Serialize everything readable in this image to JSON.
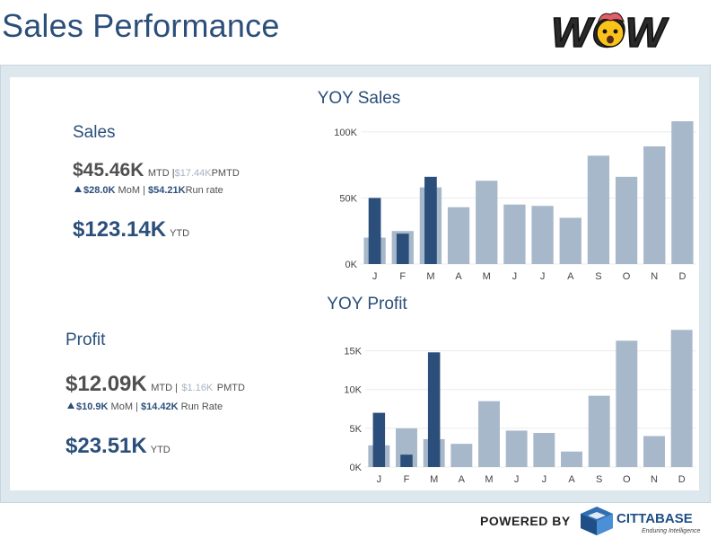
{
  "page_title": "Sales Performance",
  "logo_text": "WOW",
  "sales": {
    "heading": "Sales",
    "mtd_value": "$45.46K",
    "mtd_label": "MTD |",
    "pmtd_value": "$17.44K",
    "pmtd_label": "PMTD",
    "mom_value": "$28.0K",
    "mom_label": "MoM |",
    "run_rate_value": "$54.21K",
    "run_rate_label": "Run rate",
    "ytd_value": "$123.14K",
    "ytd_label": "YTD"
  },
  "profit": {
    "heading": "Profit",
    "mtd_value": "$12.09K",
    "mtd_label": "MTD |",
    "pmtd_value": "$1.16K",
    "pmtd_label": "PMTD",
    "mom_value": "$10.9K",
    "mom_label": "MoM |",
    "run_rate_value": "$14.42K",
    "run_rate_label": "Run Rate",
    "ytd_value": "$23.51K",
    "ytd_label": "YTD"
  },
  "footer": {
    "powered_by": "POWERED BY",
    "brand": "CITTABASE",
    "tagline": "Enduring Intelligence"
  },
  "colors": {
    "current_year": "#2b4f7a",
    "prior_year": "#a8b8cb",
    "heading": "#2b4f7a"
  },
  "chart_data": [
    {
      "type": "bar",
      "title": "YOY Sales",
      "categories": [
        "J",
        "F",
        "M",
        "A",
        "M",
        "J",
        "J",
        "A",
        "S",
        "O",
        "N",
        "D"
      ],
      "ylim": [
        0,
        108000
      ],
      "yticks": [
        0,
        50000,
        100000
      ],
      "ytick_labels": [
        "0K",
        "50K",
        "100K"
      ],
      "grid": true,
      "series": [
        {
          "values": [
            20000,
            25000,
            58000,
            43000,
            63000,
            45000,
            44000,
            35000,
            82000,
            66000,
            89000,
            108000
          ]
        },
        {
          "values": [
            50000,
            23000,
            66000,
            null,
            null,
            null,
            null,
            null,
            null,
            null,
            null,
            null
          ]
        }
      ]
    },
    {
      "type": "bar",
      "title": "YOY Profit",
      "categories": [
        "J",
        "F",
        "M",
        "A",
        "M",
        "J",
        "J",
        "A",
        "S",
        "O",
        "N",
        "D"
      ],
      "ylim": [
        0,
        17500
      ],
      "yticks": [
        0,
        5000,
        10000,
        15000
      ],
      "ytick_labels": [
        "0K",
        "5K",
        "10K",
        "15K"
      ],
      "grid": true,
      "series": [
        {
          "values": [
            2800,
            5000,
            3600,
            3000,
            8500,
            4700,
            4400,
            2000,
            9200,
            16300,
            4000,
            17700
          ]
        },
        {
          "values": [
            7000,
            1600,
            14800,
            null,
            null,
            null,
            null,
            null,
            null,
            null,
            null,
            null
          ]
        }
      ]
    }
  ]
}
